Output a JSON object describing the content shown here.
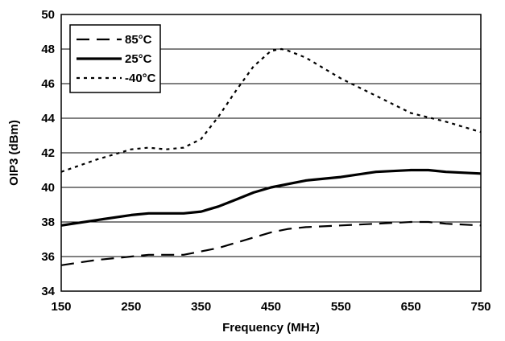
{
  "chart_data": {
    "type": "line",
    "title": "",
    "xlabel": "Frequency (MHz)",
    "ylabel": "OIP3 (dBm)",
    "xlim": [
      150,
      750
    ],
    "ylim": [
      34,
      50
    ],
    "xticks": [
      150,
      250,
      350,
      450,
      550,
      650,
      750
    ],
    "yticks": [
      34,
      36,
      38,
      40,
      42,
      44,
      46,
      48,
      50
    ],
    "grid": "horizontal",
    "legend_position": "top-left",
    "series": [
      {
        "name": "85°C",
        "style": "long-dash",
        "color": "#000000",
        "x": [
          150,
          200,
          250,
          275,
          325,
          350,
          375,
          400,
          425,
          450,
          475,
          500,
          550,
          600,
          650,
          675,
          700,
          750
        ],
        "y": [
          35.5,
          35.8,
          36.0,
          36.1,
          36.1,
          36.3,
          36.5,
          36.8,
          37.1,
          37.4,
          37.6,
          37.7,
          37.8,
          37.9,
          38.0,
          38.0,
          37.9,
          37.8
        ]
      },
      {
        "name": "25°C",
        "style": "solid",
        "color": "#000000",
        "x": [
          150,
          200,
          250,
          275,
          325,
          350,
          375,
          400,
          425,
          450,
          475,
          500,
          550,
          600,
          650,
          675,
          700,
          750
        ],
        "y": [
          37.8,
          38.1,
          38.4,
          38.5,
          38.5,
          38.6,
          38.9,
          39.3,
          39.7,
          40.0,
          40.2,
          40.4,
          40.6,
          40.9,
          41.0,
          41.0,
          40.9,
          40.8
        ]
      },
      {
        "name": "-40°C",
        "style": "short-dash",
        "color": "#000000",
        "x": [
          150,
          200,
          250,
          275,
          300,
          325,
          350,
          375,
          400,
          425,
          450,
          465,
          475,
          500,
          550,
          600,
          650,
          700,
          750
        ],
        "y": [
          40.9,
          41.6,
          42.2,
          42.3,
          42.2,
          42.3,
          42.8,
          44.1,
          45.6,
          47.0,
          47.9,
          48.0,
          47.9,
          47.5,
          46.3,
          45.3,
          44.3,
          43.8,
          43.2
        ]
      }
    ]
  }
}
